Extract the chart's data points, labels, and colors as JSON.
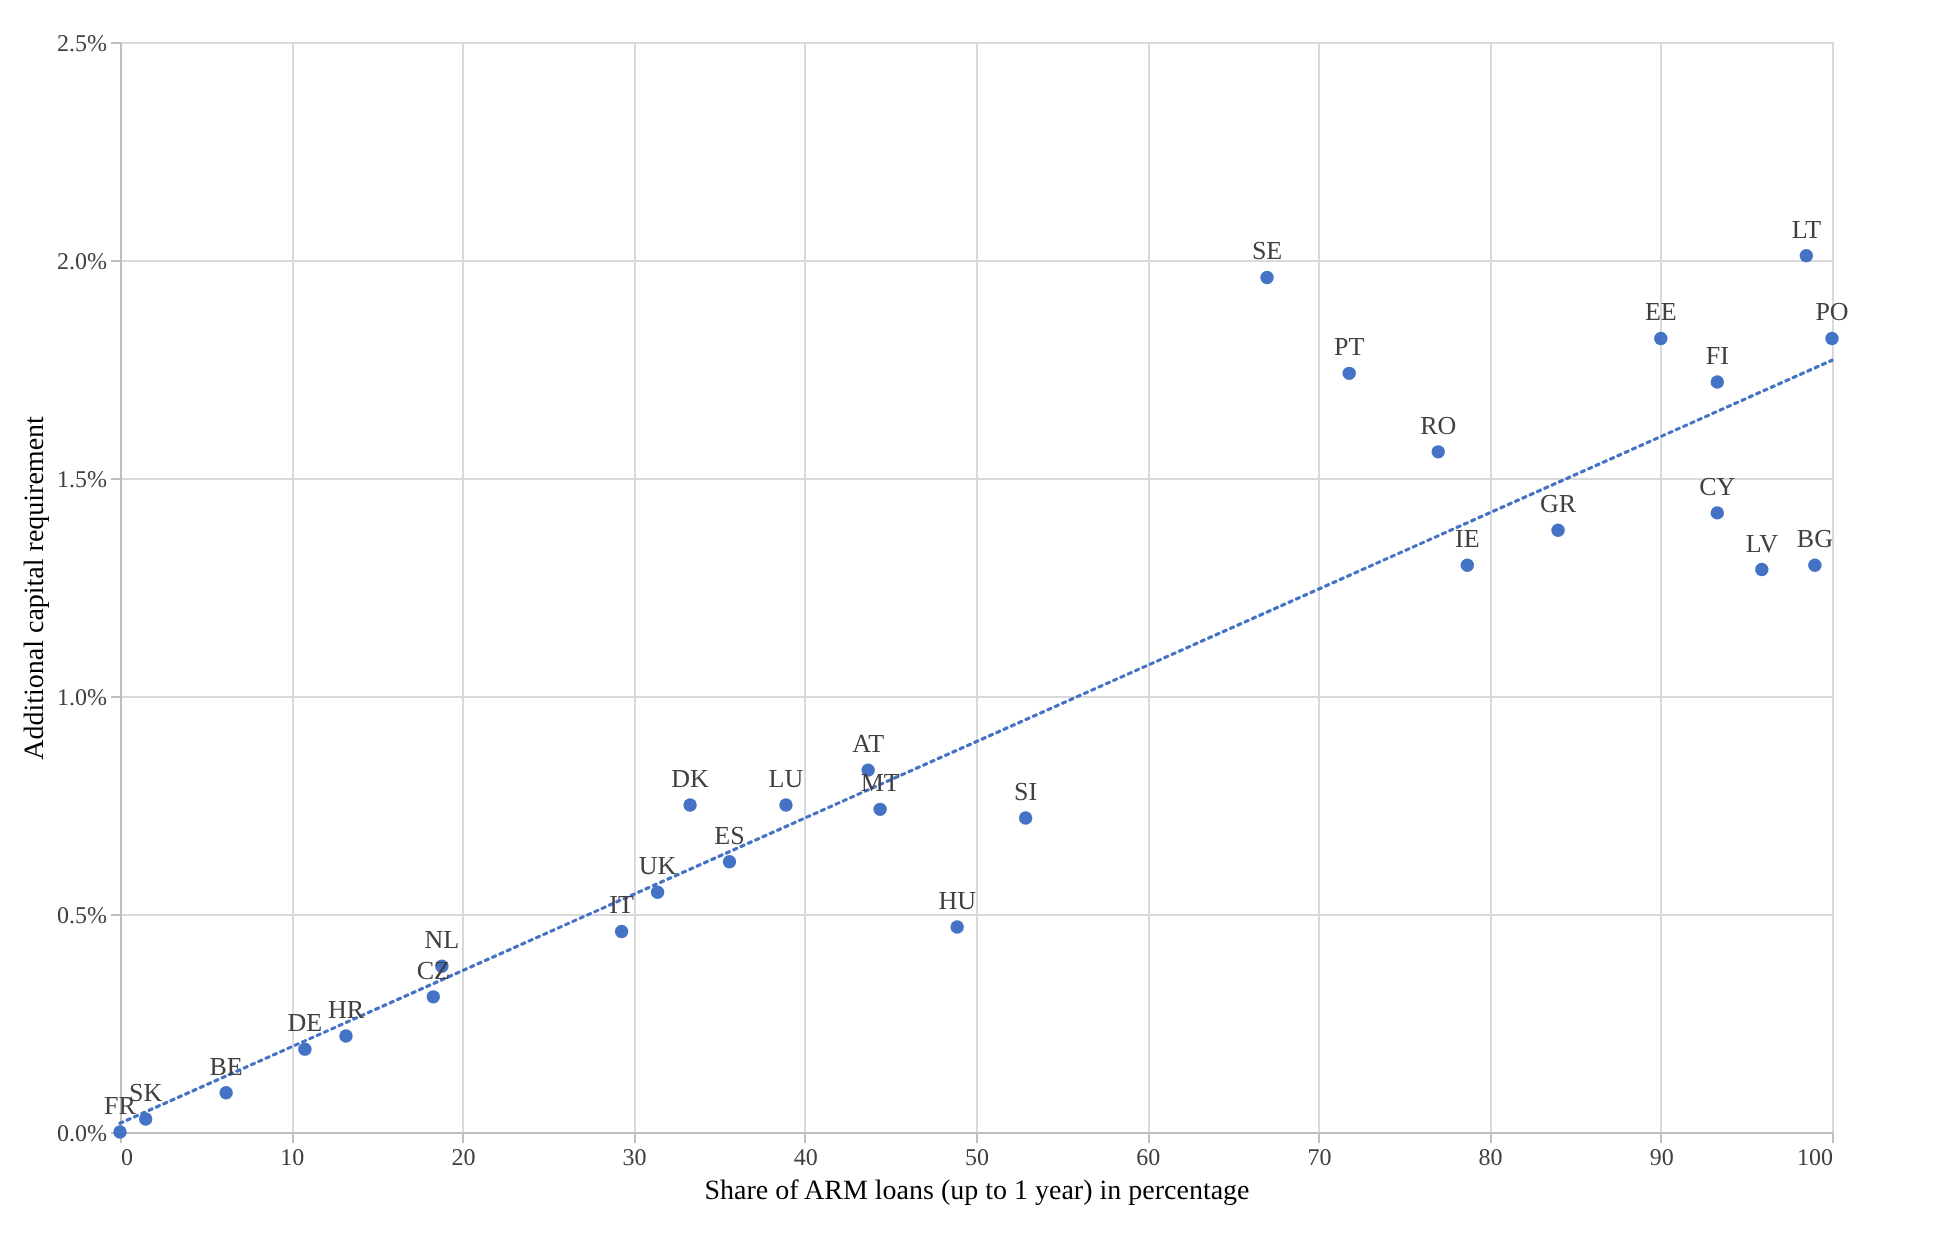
{
  "chart_data": {
    "type": "scatter",
    "xlabel": "Share of ARM loans (up to 1 year) in percentage",
    "ylabel": "Additional capital requirement",
    "xlim": [
      0,
      100
    ],
    "xticks": [
      0,
      10,
      20,
      30,
      40,
      50,
      60,
      70,
      80,
      90,
      100
    ],
    "ylim": [
      0,
      2.5
    ],
    "yticks": [
      {
        "value": 0,
        "label": "0.0%"
      },
      {
        "value": 0.5,
        "label": "0.5%"
      },
      {
        "value": 1.0,
        "label": "1.0%"
      },
      {
        "value": 1.5,
        "label": "1.5%"
      },
      {
        "value": 2.0,
        "label": "2.0%"
      },
      {
        "value": 2.5,
        "label": "2.5%"
      }
    ],
    "grid": true,
    "legend": false,
    "series": [
      {
        "color": "#4472c4",
        "marker": "circle",
        "x": [
          0,
          1.5,
          6.2,
          10.8,
          13.2,
          18.3,
          18.8,
          29.3,
          31.4,
          33.3,
          35.6,
          38.9,
          43.7,
          44.4,
          48.9,
          52.9,
          67,
          71.8,
          77,
          78.7,
          84,
          90,
          93.3,
          93.3,
          95.9,
          99,
          98.5,
          100
        ],
        "values": [
          0,
          0.03,
          0.09,
          0.19,
          0.22,
          0.31,
          0.38,
          0.46,
          0.55,
          0.75,
          0.62,
          0.75,
          0.83,
          0.74,
          0.47,
          0.72,
          1.96,
          1.74,
          1.56,
          1.3,
          1.38,
          1.82,
          1.72,
          1.42,
          1.29,
          1.3,
          2.01,
          1.82
        ]
      },
      {
        "type": "line",
        "color": "#4472c4",
        "line_style": "dotted",
        "marker": "none",
        "x": [
          0,
          100
        ],
        "values": [
          0.02,
          1.77
        ]
      }
    ],
    "annotations": [
      {
        "text": "FR",
        "x": 0,
        "y": 0
      },
      {
        "text": "SK",
        "x": 1.5,
        "y": 0.03
      },
      {
        "text": "BE",
        "x": 6.2,
        "y": 0.09
      },
      {
        "text": "DE",
        "x": 10.8,
        "y": 0.19
      },
      {
        "text": "HR",
        "x": 13.2,
        "y": 0.22
      },
      {
        "text": "CZ",
        "x": 18.3,
        "y": 0.31
      },
      {
        "text": "NL",
        "x": 18.8,
        "y": 0.38
      },
      {
        "text": "IT",
        "x": 29.3,
        "y": 0.46
      },
      {
        "text": "UK",
        "x": 31.4,
        "y": 0.55
      },
      {
        "text": "DK",
        "x": 33.3,
        "y": 0.75
      },
      {
        "text": "ES",
        "x": 35.6,
        "y": 0.62
      },
      {
        "text": "LU",
        "x": 38.9,
        "y": 0.75
      },
      {
        "text": "AT",
        "x": 43.7,
        "y": 0.83
      },
      {
        "text": "MT",
        "x": 44.4,
        "y": 0.74
      },
      {
        "text": "HU",
        "x": 48.9,
        "y": 0.47
      },
      {
        "text": "SI",
        "x": 52.9,
        "y": 0.72
      },
      {
        "text": "SE",
        "x": 67,
        "y": 1.96
      },
      {
        "text": "PT",
        "x": 71.8,
        "y": 1.74
      },
      {
        "text": "RO",
        "x": 77,
        "y": 1.56
      },
      {
        "text": "IE",
        "x": 78.7,
        "y": 1.3
      },
      {
        "text": "GR",
        "x": 84,
        "y": 1.38
      },
      {
        "text": "EE",
        "x": 90,
        "y": 1.82
      },
      {
        "text": "FI",
        "x": 93.3,
        "y": 1.72
      },
      {
        "text": "CY",
        "x": 93.3,
        "y": 1.42
      },
      {
        "text": "LV",
        "x": 95.9,
        "y": 1.29
      },
      {
        "text": "BG",
        "x": 99,
        "y": 1.3
      },
      {
        "text": "LT",
        "x": 98.5,
        "y": 2.01
      },
      {
        "text": "PO",
        "x": 100,
        "y": 1.82
      }
    ]
  }
}
